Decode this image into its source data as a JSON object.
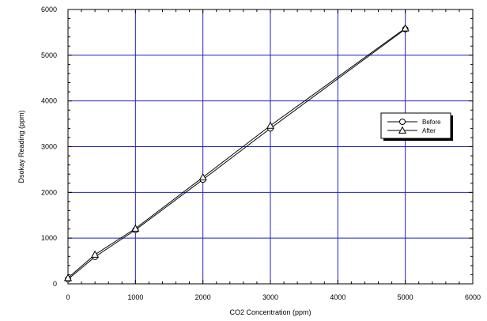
{
  "chart_data": {
    "type": "line",
    "title": "",
    "xlabel": "CO2 Concentration (ppm)",
    "ylabel": "Dsokay Reading (ppm)",
    "xlim": [
      0,
      6000
    ],
    "ylim": [
      0,
      6000
    ],
    "xticks": [
      0,
      1000,
      2000,
      3000,
      4000,
      5000,
      6000
    ],
    "yticks": [
      0,
      1000,
      2000,
      3000,
      4000,
      5000,
      6000
    ],
    "grid": true,
    "grid_color": "#1f1fc8",
    "line_color": "#000000",
    "legend_placement": "right",
    "series": [
      {
        "name": "Before",
        "marker": "circle",
        "x": [
          0,
          400,
          1000,
          2000,
          3000,
          5000
        ],
        "y": [
          100,
          590,
          1180,
          2280,
          3400,
          5570
        ]
      },
      {
        "name": "After",
        "marker": "triangle",
        "x": [
          0,
          400,
          1000,
          2000,
          3000,
          5000
        ],
        "y": [
          130,
          640,
          1210,
          2330,
          3460,
          5590
        ]
      }
    ]
  }
}
